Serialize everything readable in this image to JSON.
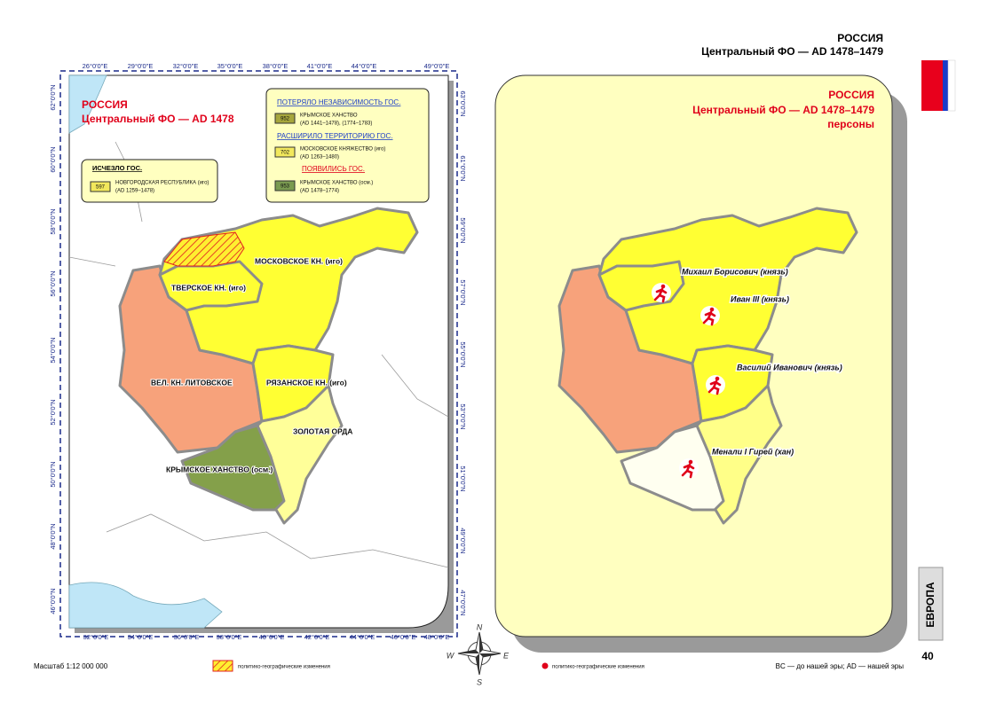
{
  "header": {
    "title": "РОССИЯ",
    "subtitle": "Центральный ФО — AD 1478–1479"
  },
  "left_map": {
    "title": "РОССИЯ",
    "subtitle": "Центральный ФО — AD 1478",
    "legend_disappeared": {
      "heading": "ИСЧЕЗЛО ГОС.",
      "items": [
        {
          "code": "597",
          "name": "НОВГОРОДСКАЯ РЕСПУБЛИКА (иго)",
          "period": "(AD 1259–1478)"
        }
      ]
    },
    "legend_changes": [
      {
        "heading": "ПОТЕРЯЛО НЕЗАВИСИМОСТЬ ГОС.",
        "code": "952",
        "name": "КРЫМСКОЕ ХАНСТВО",
        "period": "(AD 1441–1478), (1774–1783)"
      },
      {
        "heading": "РАСШИРИЛО ТЕРРИТОРИЮ ГОС.",
        "code": "702",
        "name": "МОСКОВСКОЕ КНЯЖЕСТВО (иго)",
        "period": "(AD 1263–1480)"
      },
      {
        "heading": "ПОЯВИЛИСЬ ГОС.",
        "code": "953",
        "name": "КРЫМСКОЕ ХАНСТВО (осм.)",
        "period": "(AD 1478–1774)"
      }
    ],
    "regions": [
      "МОСКОВСКОЕ КН. (иго)",
      "ТВЕРСКОЕ КН. (иго)",
      "ВЕЛ. КН. ЛИТОВСКОЕ",
      "РЯЗАНСКОЕ КН. (иго)",
      "ЗОЛОТАЯ ОРДА",
      "КРЫМСКОЕ ХАНСТВО (осм.)"
    ],
    "axis_top": [
      "26°0'0\"E",
      "29°0'0\"E",
      "32°0'0\"E",
      "35°0'0\"E",
      "38°0'0\"E",
      "41°0'0\"E",
      "44°0'0\"E",
      "49°0'0\"E"
    ],
    "axis_bottom": [
      "32°0'0\"E",
      "34°0'0\"E",
      "36°0'0\"E",
      "38°0'0\"E",
      "40°0'0\"E",
      "42°0'0\"E",
      "44°0'0\"E",
      "46°0'0\"E",
      "48°0'0\"E"
    ],
    "axis_left": [
      "62°0'0\"N",
      "60°0'0\"N",
      "58°0'0\"N",
      "56°0'0\"N",
      "54°0'0\"N",
      "52°0'0\"N",
      "50°0'0\"N",
      "48°0'0\"N",
      "46°0'0\"N"
    ],
    "axis_right": [
      "63°0'0\"N",
      "61°0'0\"N",
      "59°0'0\"N",
      "57°0'0\"N",
      "55°0'0\"N",
      "53°0'0\"N",
      "51°0'0\"N",
      "49°0'0\"N",
      "47°0'0\"N"
    ]
  },
  "right_map": {
    "title": "РОССИЯ",
    "subtitle": "Центральный ФО — AD 1478–1479",
    "caption": "персоны",
    "persons": [
      "Михаил Борисович (князь)",
      "Иван III (князь)",
      "Василий Иванович (князь)",
      "Менали I Гирей (хан)"
    ]
  },
  "compass": [
    "N",
    "W",
    "E",
    "S"
  ],
  "footer": {
    "scale": "Масштаб 1:12 000 000",
    "legend_hatch": "политико-географические изменения",
    "legend_dot": "политико-географические изменения",
    "era_note": "BC — до нашей эры; AD — нашей эры",
    "page": "40",
    "section": "ЕВРОПА"
  }
}
